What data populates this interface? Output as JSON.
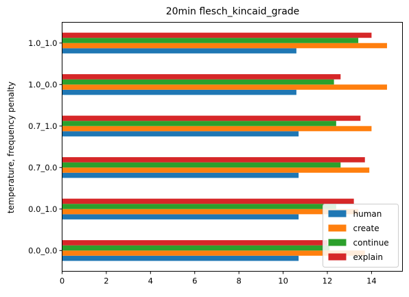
{
  "chart_data": {
    "type": "bar",
    "orientation": "horizontal",
    "title": "20min flesch_kincaid_grade",
    "xlabel": "",
    "ylabel": "temperature, frequency penalty",
    "categories": [
      "0.0_0.0",
      "0.0_1.0",
      "0.7_0.0",
      "0.7_1.0",
      "1.0_0.0",
      "1.0_1.0"
    ],
    "xlim": [
      0,
      15.4
    ],
    "xticks": [
      0,
      2,
      4,
      6,
      8,
      10,
      12,
      14
    ],
    "series": [
      {
        "name": "human",
        "color": "#1f77b4",
        "values": [
          10.7,
          10.7,
          10.7,
          10.7,
          10.6,
          10.6
        ]
      },
      {
        "name": "create",
        "color": "#ff7f0e",
        "values": [
          13.7,
          13.4,
          13.9,
          14.0,
          14.7,
          14.7
        ]
      },
      {
        "name": "continue",
        "color": "#2ca02c",
        "values": [
          12.1,
          12.4,
          12.6,
          12.4,
          12.3,
          13.4
        ]
      },
      {
        "name": "explain",
        "color": "#d62728",
        "values": [
          12.0,
          13.2,
          13.7,
          13.5,
          12.6,
          14.0
        ]
      }
    ],
    "grid": false,
    "legend_position": "lower right"
  }
}
